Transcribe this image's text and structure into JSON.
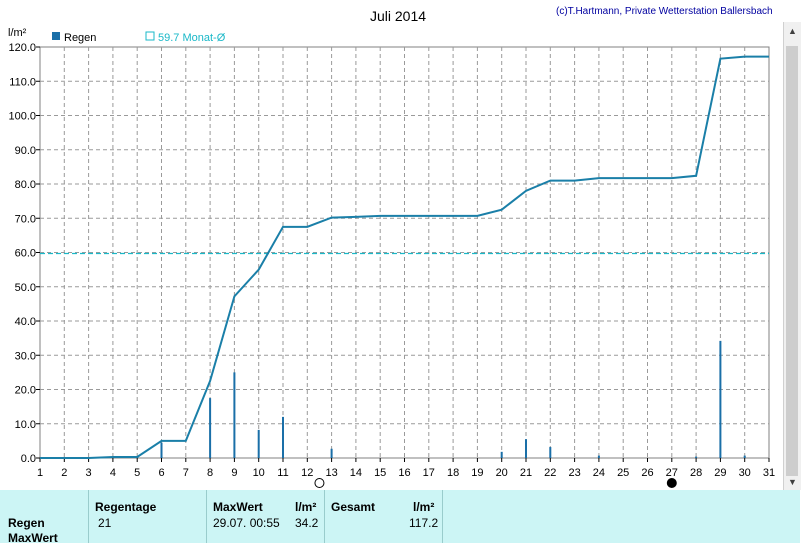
{
  "header": {
    "credit": "(c)T.Hartmann, Private Wetterstation Ballersbach"
  },
  "chart_data": {
    "type": "bar+line",
    "title": "Juli 2014",
    "ylabel": "l/m²",
    "ylim": [
      0,
      120
    ],
    "y_ticks": [
      "0.0",
      "10.0",
      "20.0",
      "30.0",
      "40.0",
      "50.0",
      "60.0",
      "70.0",
      "80.0",
      "90.0",
      "100.0",
      "110.0",
      "120.0"
    ],
    "x_ticks": [
      "1",
      "2",
      "3",
      "4",
      "5",
      "6",
      "7",
      "8",
      "9",
      "10",
      "11",
      "12",
      "13",
      "14",
      "15",
      "16",
      "17",
      "18",
      "19",
      "20",
      "21",
      "22",
      "23",
      "24",
      "25",
      "26",
      "27",
      "28",
      "29",
      "30",
      "31"
    ],
    "grid": true,
    "legend": [
      {
        "label": "Regen",
        "color": "#1a6fa8",
        "marker": "filled-square"
      },
      {
        "label": "59.7 Monat-Ø",
        "color": "#1ab8c8",
        "marker": "empty-square"
      }
    ],
    "reference_line": {
      "value": 59.7,
      "color": "#1ab8c8"
    },
    "series": [
      {
        "name": "Regen",
        "kind": "daily_bars",
        "x": [
          5,
          6,
          8,
          9,
          10,
          11,
          13,
          20,
          21,
          22,
          24,
          28,
          29,
          30
        ],
        "values": [
          0.3,
          4.5,
          17.5,
          25.0,
          8.2,
          12.0,
          2.7,
          1.8,
          5.5,
          3.2,
          0.7,
          0.4,
          34.2,
          0.7
        ]
      },
      {
        "name": "cumulative",
        "kind": "line",
        "x": [
          1,
          2,
          3,
          4,
          5,
          6,
          7,
          8,
          9,
          10,
          11,
          12,
          13,
          14,
          15,
          16,
          17,
          18,
          19,
          20,
          21,
          22,
          23,
          24,
          25,
          26,
          27,
          28,
          29,
          30,
          31
        ],
        "values": [
          0,
          0,
          0,
          0.3,
          0.3,
          5.0,
          5.0,
          22.5,
          47.2,
          55.0,
          67.5,
          67.5,
          70.2,
          70.4,
          70.7,
          70.7,
          70.7,
          70.7,
          70.7,
          72.5,
          78.0,
          81.0,
          81.0,
          81.7,
          81.7,
          81.7,
          81.7,
          82.4,
          116.6,
          117.2,
          117.2
        ]
      }
    ],
    "moon_phases": [
      {
        "day": 12.5,
        "phase": "full"
      },
      {
        "day": 27,
        "phase": "new"
      }
    ]
  },
  "table": {
    "row_labels": [
      "Regen",
      "MaxWert"
    ],
    "regentage_header": "Regentage",
    "regentage_value": "21",
    "maxwert_header": "MaxWert",
    "maxwert_date": "29.07.  00:55",
    "unit_header": "l/m²",
    "maxwert_value": "34.2",
    "gesamt_header": "Gesamt",
    "gesamt_unit": "l/m²",
    "gesamt_value": "117.2"
  }
}
